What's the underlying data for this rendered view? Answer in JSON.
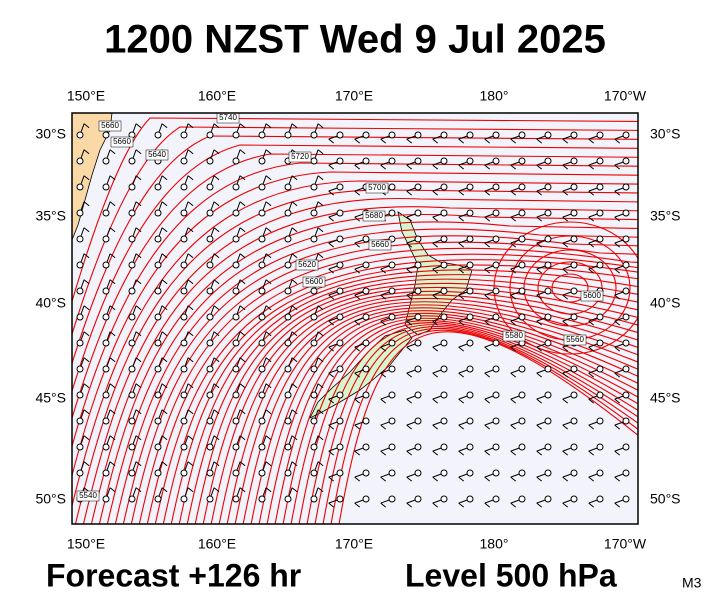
{
  "title": "1200 NZST Wed 9 Jul 2025",
  "axes": {
    "top": [
      "150°E",
      "160°E",
      "170°E",
      "180°",
      "170°W"
    ],
    "bottom": [
      "150°E",
      "160°E",
      "170°E",
      "180°",
      "170°W"
    ],
    "left": [
      "30°S",
      "35°S",
      "40°S",
      "45°S",
      "50°S"
    ],
    "right": [
      "30°S",
      "35°S",
      "40°S",
      "45°S",
      "50°S"
    ]
  },
  "contour_labels": [
    "5660",
    "5660",
    "5740",
    "5640",
    "5720",
    "5700",
    "5680",
    "5660",
    "5620",
    "5600",
    "5580",
    "5600",
    "5560",
    "5540"
  ],
  "footer": {
    "forecast": "Forecast +126 hr",
    "level": "Level 500 hPa",
    "model": "M3"
  }
}
